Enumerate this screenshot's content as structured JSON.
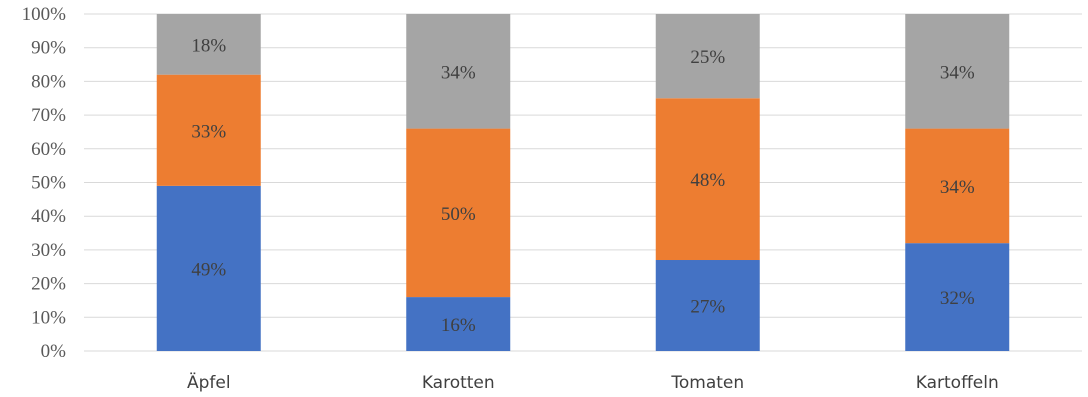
{
  "chart_data": {
    "type": "bar",
    "stacked": true,
    "percent_stacked": true,
    "categories": [
      "Äpfel",
      "Karotten",
      "Tomaten",
      "Kartoffeln"
    ],
    "series": [
      {
        "values": [
          49,
          16,
          27,
          32
        ],
        "color": "#4472c4"
      },
      {
        "values": [
          33,
          50,
          48,
          34
        ],
        "color": "#ed7d31"
      },
      {
        "values": [
          18,
          34,
          25,
          34
        ],
        "color": "#a5a5a5"
      }
    ],
    "ylim": [
      0,
      100
    ],
    "yticks": [
      "0%",
      "10%",
      "20%",
      "30%",
      "40%",
      "50%",
      "60%",
      "70%",
      "80%",
      "90%",
      "100%"
    ],
    "data_labels": true,
    "grid": true,
    "legend": "none"
  }
}
